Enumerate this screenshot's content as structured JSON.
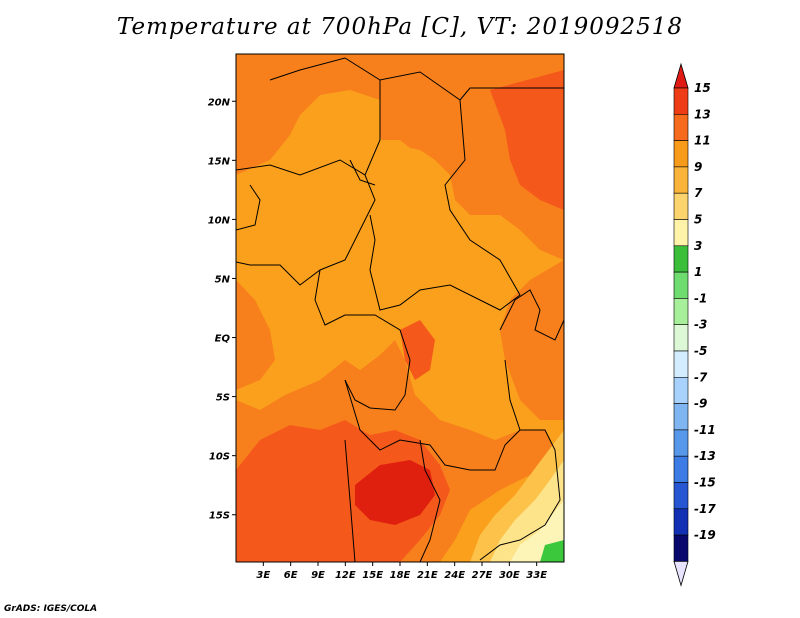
{
  "title": "Temperature at 700hPa [C], VT: 2019092518",
  "credit": "GrADS: IGES/COLA",
  "map": {
    "lon_range": [
      0,
      36
    ],
    "lat_range": [
      -19,
      24
    ],
    "lat_ticks": [
      {
        "value": 20,
        "label": "20N"
      },
      {
        "value": 15,
        "label": "15N"
      },
      {
        "value": 10,
        "label": "10N"
      },
      {
        "value": 5,
        "label": "5N"
      },
      {
        "value": 0,
        "label": "EQ"
      },
      {
        "value": -5,
        "label": "5S"
      },
      {
        "value": -10,
        "label": "10S"
      },
      {
        "value": -15,
        "label": "15S"
      }
    ],
    "lon_ticks": [
      {
        "value": 3,
        "label": "3E"
      },
      {
        "value": 6,
        "label": "6E"
      },
      {
        "value": 9,
        "label": "9E"
      },
      {
        "value": 12,
        "label": "12E"
      },
      {
        "value": 15,
        "label": "15E"
      },
      {
        "value": 18,
        "label": "18E"
      },
      {
        "value": 21,
        "label": "21E"
      },
      {
        "value": 24,
        "label": "24E"
      },
      {
        "value": 27,
        "label": "27E"
      },
      {
        "value": 30,
        "label": "30E"
      },
      {
        "value": 33,
        "label": "33E"
      }
    ]
  },
  "colorbar": {
    "labels": [
      "15",
      "13",
      "11",
      "9",
      "7",
      "5",
      "3",
      "1",
      "-1",
      "-3",
      "-5",
      "-7",
      "-9",
      "-11",
      "-13",
      "-15",
      "-17",
      "-19"
    ],
    "top_arrow_color": "#e01a14",
    "bottom_arrow_color": "#e8e4ff",
    "colors": [
      "#ee3d16",
      "#f56a1c",
      "#f89a1a",
      "#fbb43a",
      "#fbd46e",
      "#fef3a8",
      "#3bbf3b",
      "#6fdc6f",
      "#a8ef9c",
      "#dcf8d6",
      "#d4ecff",
      "#a8d2fb",
      "#7fb6f2",
      "#5898ea",
      "#3c7ce4",
      "#2656d2",
      "#1230b4",
      "#08086e"
    ]
  },
  "field_colors": {
    "t9": "#fba01c",
    "t11": "#f8801c",
    "t13": "#f4591b",
    "t15": "#e0200e",
    "t7": "#fcc24a",
    "t5": "#fde48a",
    "t3": "#fdf4b8",
    "green": "#3cc83c",
    "border": "#000000"
  }
}
